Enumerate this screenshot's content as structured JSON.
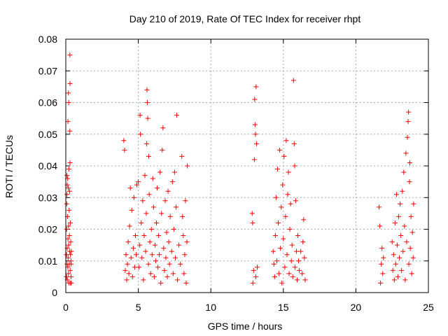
{
  "chart_data": {
    "type": "scatter",
    "title": "Day 210 of 2019, Rate Of TEC Index for receiver rhpt",
    "xlabel": "GPS time / hours",
    "ylabel": "ROTI / TECUs",
    "xlim": [
      0,
      25
    ],
    "ylim": [
      0,
      0.08
    ],
    "xticks": [
      0,
      5,
      10,
      15,
      20,
      25
    ],
    "xtick_labels": [
      "0",
      "5",
      "10",
      "15",
      "20",
      "25"
    ],
    "yticks": [
      0,
      0.01,
      0.02,
      0.03,
      0.04,
      0.05,
      0.06,
      0.07,
      0.08
    ],
    "ytick_labels": [
      "0",
      "0.01",
      "0.02",
      "0.03",
      "0.04",
      "0.05",
      "0.06",
      "0.07",
      "0.08"
    ],
    "grid": true,
    "legend": "none",
    "marker": "plus",
    "marker_color": "#ff0000",
    "series": [
      {
        "name": "ROTI",
        "points": [
          [
            0.05,
            0.005
          ],
          [
            0.05,
            0.012
          ],
          [
            0.06,
            0.02
          ],
          [
            0.07,
            0.028
          ],
          [
            0.08,
            0.031
          ],
          [
            0.08,
            0.037
          ],
          [
            0.09,
            0.009
          ],
          [
            0.1,
            0.014
          ],
          [
            0.1,
            0.034
          ],
          [
            0.11,
            0.004
          ],
          [
            0.12,
            0.024
          ],
          [
            0.13,
            0.036
          ],
          [
            0.14,
            0.008
          ],
          [
            0.15,
            0.017
          ],
          [
            0.15,
            0.054
          ],
          [
            0.16,
            0.011
          ],
          [
            0.17,
            0.033
          ],
          [
            0.18,
            0.063
          ],
          [
            0.18,
            0.006
          ],
          [
            0.19,
            0.021
          ],
          [
            0.2,
            0.06
          ],
          [
            0.2,
            0.015
          ],
          [
            0.21,
            0.039
          ],
          [
            0.22,
            0.003
          ],
          [
            0.23,
            0.026
          ],
          [
            0.24,
            0.009
          ],
          [
            0.25,
            0.018
          ],
          [
            0.26,
            0.032
          ],
          [
            0.27,
            0.013
          ],
          [
            0.28,
            0.051
          ],
          [
            0.28,
            0.075
          ],
          [
            0.29,
            0.066
          ],
          [
            0.29,
            0.041
          ],
          [
            0.3,
            0.007
          ],
          [
            0.31,
            0.022
          ],
          [
            0.32,
            0.012
          ],
          [
            0.33,
            0.003
          ],
          [
            0.34,
            0.016
          ],
          [
            0.35,
            0.01
          ],
          [
            0.36,
            0.005
          ],
          [
            0.37,
            0.009
          ],
          [
            0.38,
            0.013
          ],
          [
            0.38,
            0.003
          ],
          [
            4.0,
            0.048
          ],
          [
            4.05,
            0.045
          ],
          [
            4.1,
            0.007
          ],
          [
            4.15,
            0.012
          ],
          [
            4.2,
            0.004
          ],
          [
            4.25,
            0.009
          ],
          [
            4.3,
            0.016
          ],
          [
            4.35,
            0.006
          ],
          [
            4.4,
            0.021
          ],
          [
            4.45,
            0.033
          ],
          [
            4.5,
            0.011
          ],
          [
            4.55,
            0.026
          ],
          [
            4.6,
            0.005
          ],
          [
            4.65,
            0.014
          ],
          [
            4.7,
            0.03
          ],
          [
            4.75,
            0.008
          ],
          [
            4.8,
            0.018
          ],
          [
            4.85,
            0.012
          ],
          [
            4.9,
            0.034
          ],
          [
            5.0,
            0.035
          ],
          [
            5.05,
            0.008
          ],
          [
            5.1,
            0.015
          ],
          [
            5.12,
            0.056
          ],
          [
            5.15,
            0.05
          ],
          [
            5.2,
            0.022
          ],
          [
            5.25,
            0.011
          ],
          [
            5.3,
            0.029
          ],
          [
            5.35,
            0.004
          ],
          [
            5.4,
            0.018
          ],
          [
            5.45,
            0.037
          ],
          [
            5.5,
            0.013
          ],
          [
            5.55,
            0.025
          ],
          [
            5.58,
            0.047
          ],
          [
            5.6,
            0.064
          ],
          [
            5.62,
            0.06
          ],
          [
            5.65,
            0.055
          ],
          [
            5.7,
            0.009
          ],
          [
            5.72,
            0.043
          ],
          [
            5.75,
            0.031
          ],
          [
            5.8,
            0.016
          ],
          [
            5.85,
            0.006
          ],
          [
            5.9,
            0.02
          ],
          [
            5.95,
            0.012
          ],
          [
            6.0,
            0.036
          ],
          [
            6.05,
            0.027
          ],
          [
            6.1,
            0.005
          ],
          [
            6.15,
            0.015
          ],
          [
            6.2,
            0.01
          ],
          [
            6.25,
            0.022
          ],
          [
            6.3,
            0.033
          ],
          [
            6.35,
            0.008
          ],
          [
            6.4,
            0.018
          ],
          [
            6.45,
            0.012
          ],
          [
            6.5,
            0.038
          ],
          [
            6.55,
            0.003
          ],
          [
            6.6,
            0.025
          ],
          [
            6.65,
            0.045
          ],
          [
            6.7,
            0.052
          ],
          [
            6.75,
            0.014
          ],
          [
            6.8,
            0.007
          ],
          [
            6.85,
            0.029
          ],
          [
            6.9,
            0.011
          ],
          [
            6.95,
            0.019
          ],
          [
            7.0,
            0.005
          ],
          [
            7.05,
            0.032
          ],
          [
            7.1,
            0.016
          ],
          [
            7.15,
            0.009
          ],
          [
            7.2,
            0.024
          ],
          [
            7.3,
            0.013
          ],
          [
            7.35,
            0.035
          ],
          [
            7.4,
            0.006
          ],
          [
            7.45,
            0.02
          ],
          [
            7.5,
            0.038
          ],
          [
            7.55,
            0.011
          ],
          [
            7.6,
            0.027
          ],
          [
            7.65,
            0.056
          ],
          [
            7.7,
            0.004
          ],
          [
            7.8,
            0.015
          ],
          [
            7.9,
            0.009
          ],
          [
            8.0,
            0.043
          ],
          [
            8.05,
            0.024
          ],
          [
            8.1,
            0.018
          ],
          [
            8.15,
            0.006
          ],
          [
            8.2,
            0.012
          ],
          [
            8.25,
            0.029
          ],
          [
            8.3,
            0.003
          ],
          [
            8.35,
            0.016
          ],
          [
            8.38,
            0.04
          ],
          [
            12.85,
            0.025
          ],
          [
            12.88,
            0.022
          ],
          [
            12.9,
            0.003
          ],
          [
            12.95,
            0.007
          ],
          [
            13.0,
            0.042
          ],
          [
            13.02,
            0.061
          ],
          [
            13.05,
            0.053
          ],
          [
            13.08,
            0.05
          ],
          [
            13.1,
            0.005
          ],
          [
            13.12,
            0.065
          ],
          [
            13.15,
            0.047
          ],
          [
            13.2,
            0.008
          ],
          [
            14.3,
            0.013
          ],
          [
            14.35,
            0.009
          ],
          [
            14.4,
            0.005
          ],
          [
            14.45,
            0.018
          ],
          [
            14.5,
            0.03
          ],
          [
            14.55,
            0.01
          ],
          [
            14.6,
            0.039
          ],
          [
            14.65,
            0.022
          ],
          [
            14.7,
            0.006
          ],
          [
            14.75,
            0.045
          ],
          [
            14.8,
            0.014
          ],
          [
            14.85,
            0.027
          ],
          [
            14.9,
            0.003
          ],
          [
            14.95,
            0.034
          ],
          [
            15.0,
            0.017
          ],
          [
            15.05,
            0.043
          ],
          [
            15.1,
            0.008
          ],
          [
            15.15,
            0.024
          ],
          [
            15.2,
            0.048
          ],
          [
            15.25,
            0.012
          ],
          [
            15.3,
            0.031
          ],
          [
            15.35,
            0.038
          ],
          [
            15.4,
            0.006
          ],
          [
            15.45,
            0.02
          ],
          [
            15.5,
            0.028
          ],
          [
            15.55,
            0.01
          ],
          [
            15.6,
            0.015
          ],
          [
            15.65,
            0.005
          ],
          [
            15.7,
            0.067
          ],
          [
            15.75,
            0.047
          ],
          [
            15.78,
            0.04
          ],
          [
            15.8,
            0.008
          ],
          [
            15.85,
            0.029
          ],
          [
            15.9,
            0.013
          ],
          [
            15.95,
            0.004
          ],
          [
            16.0,
            0.018
          ],
          [
            16.05,
            0.01
          ],
          [
            16.1,
            0.007
          ],
          [
            16.2,
            0.013
          ],
          [
            16.3,
            0.006
          ],
          [
            16.35,
            0.016
          ],
          [
            16.4,
            0.023
          ],
          [
            16.45,
            0.011
          ],
          [
            16.5,
            0.004
          ],
          [
            21.6,
            0.027
          ],
          [
            21.65,
            0.021
          ],
          [
            21.7,
            0.003
          ],
          [
            21.75,
            0.009
          ],
          [
            21.8,
            0.014
          ],
          [
            21.85,
            0.006
          ],
          [
            21.9,
            0.011
          ],
          [
            22.5,
            0.016
          ],
          [
            22.55,
            0.007
          ],
          [
            22.6,
            0.012
          ],
          [
            22.65,
            0.004
          ],
          [
            22.7,
            0.022
          ],
          [
            22.75,
            0.009
          ],
          [
            22.8,
            0.031
          ],
          [
            22.85,
            0.015
          ],
          [
            22.9,
            0.005
          ],
          [
            22.95,
            0.024
          ],
          [
            23.0,
            0.011
          ],
          [
            23.05,
            0.028
          ],
          [
            23.1,
            0.018
          ],
          [
            23.15,
            0.007
          ],
          [
            23.2,
            0.032
          ],
          [
            23.25,
            0.013
          ],
          [
            23.3,
            0.038
          ],
          [
            23.35,
            0.021
          ],
          [
            23.4,
            0.004
          ],
          [
            23.45,
            0.044
          ],
          [
            23.5,
            0.016
          ],
          [
            23.55,
            0.049
          ],
          [
            23.6,
            0.054
          ],
          [
            23.63,
            0.057
          ],
          [
            23.65,
            0.009
          ],
          [
            23.7,
            0.035
          ],
          [
            23.72,
            0.041
          ],
          [
            23.75,
            0.014
          ],
          [
            23.8,
            0.024
          ],
          [
            23.85,
            0.006
          ],
          [
            23.9,
            0.019
          ],
          [
            23.95,
            0.011
          ],
          [
            23.98,
            0.028
          ]
        ]
      }
    ]
  }
}
